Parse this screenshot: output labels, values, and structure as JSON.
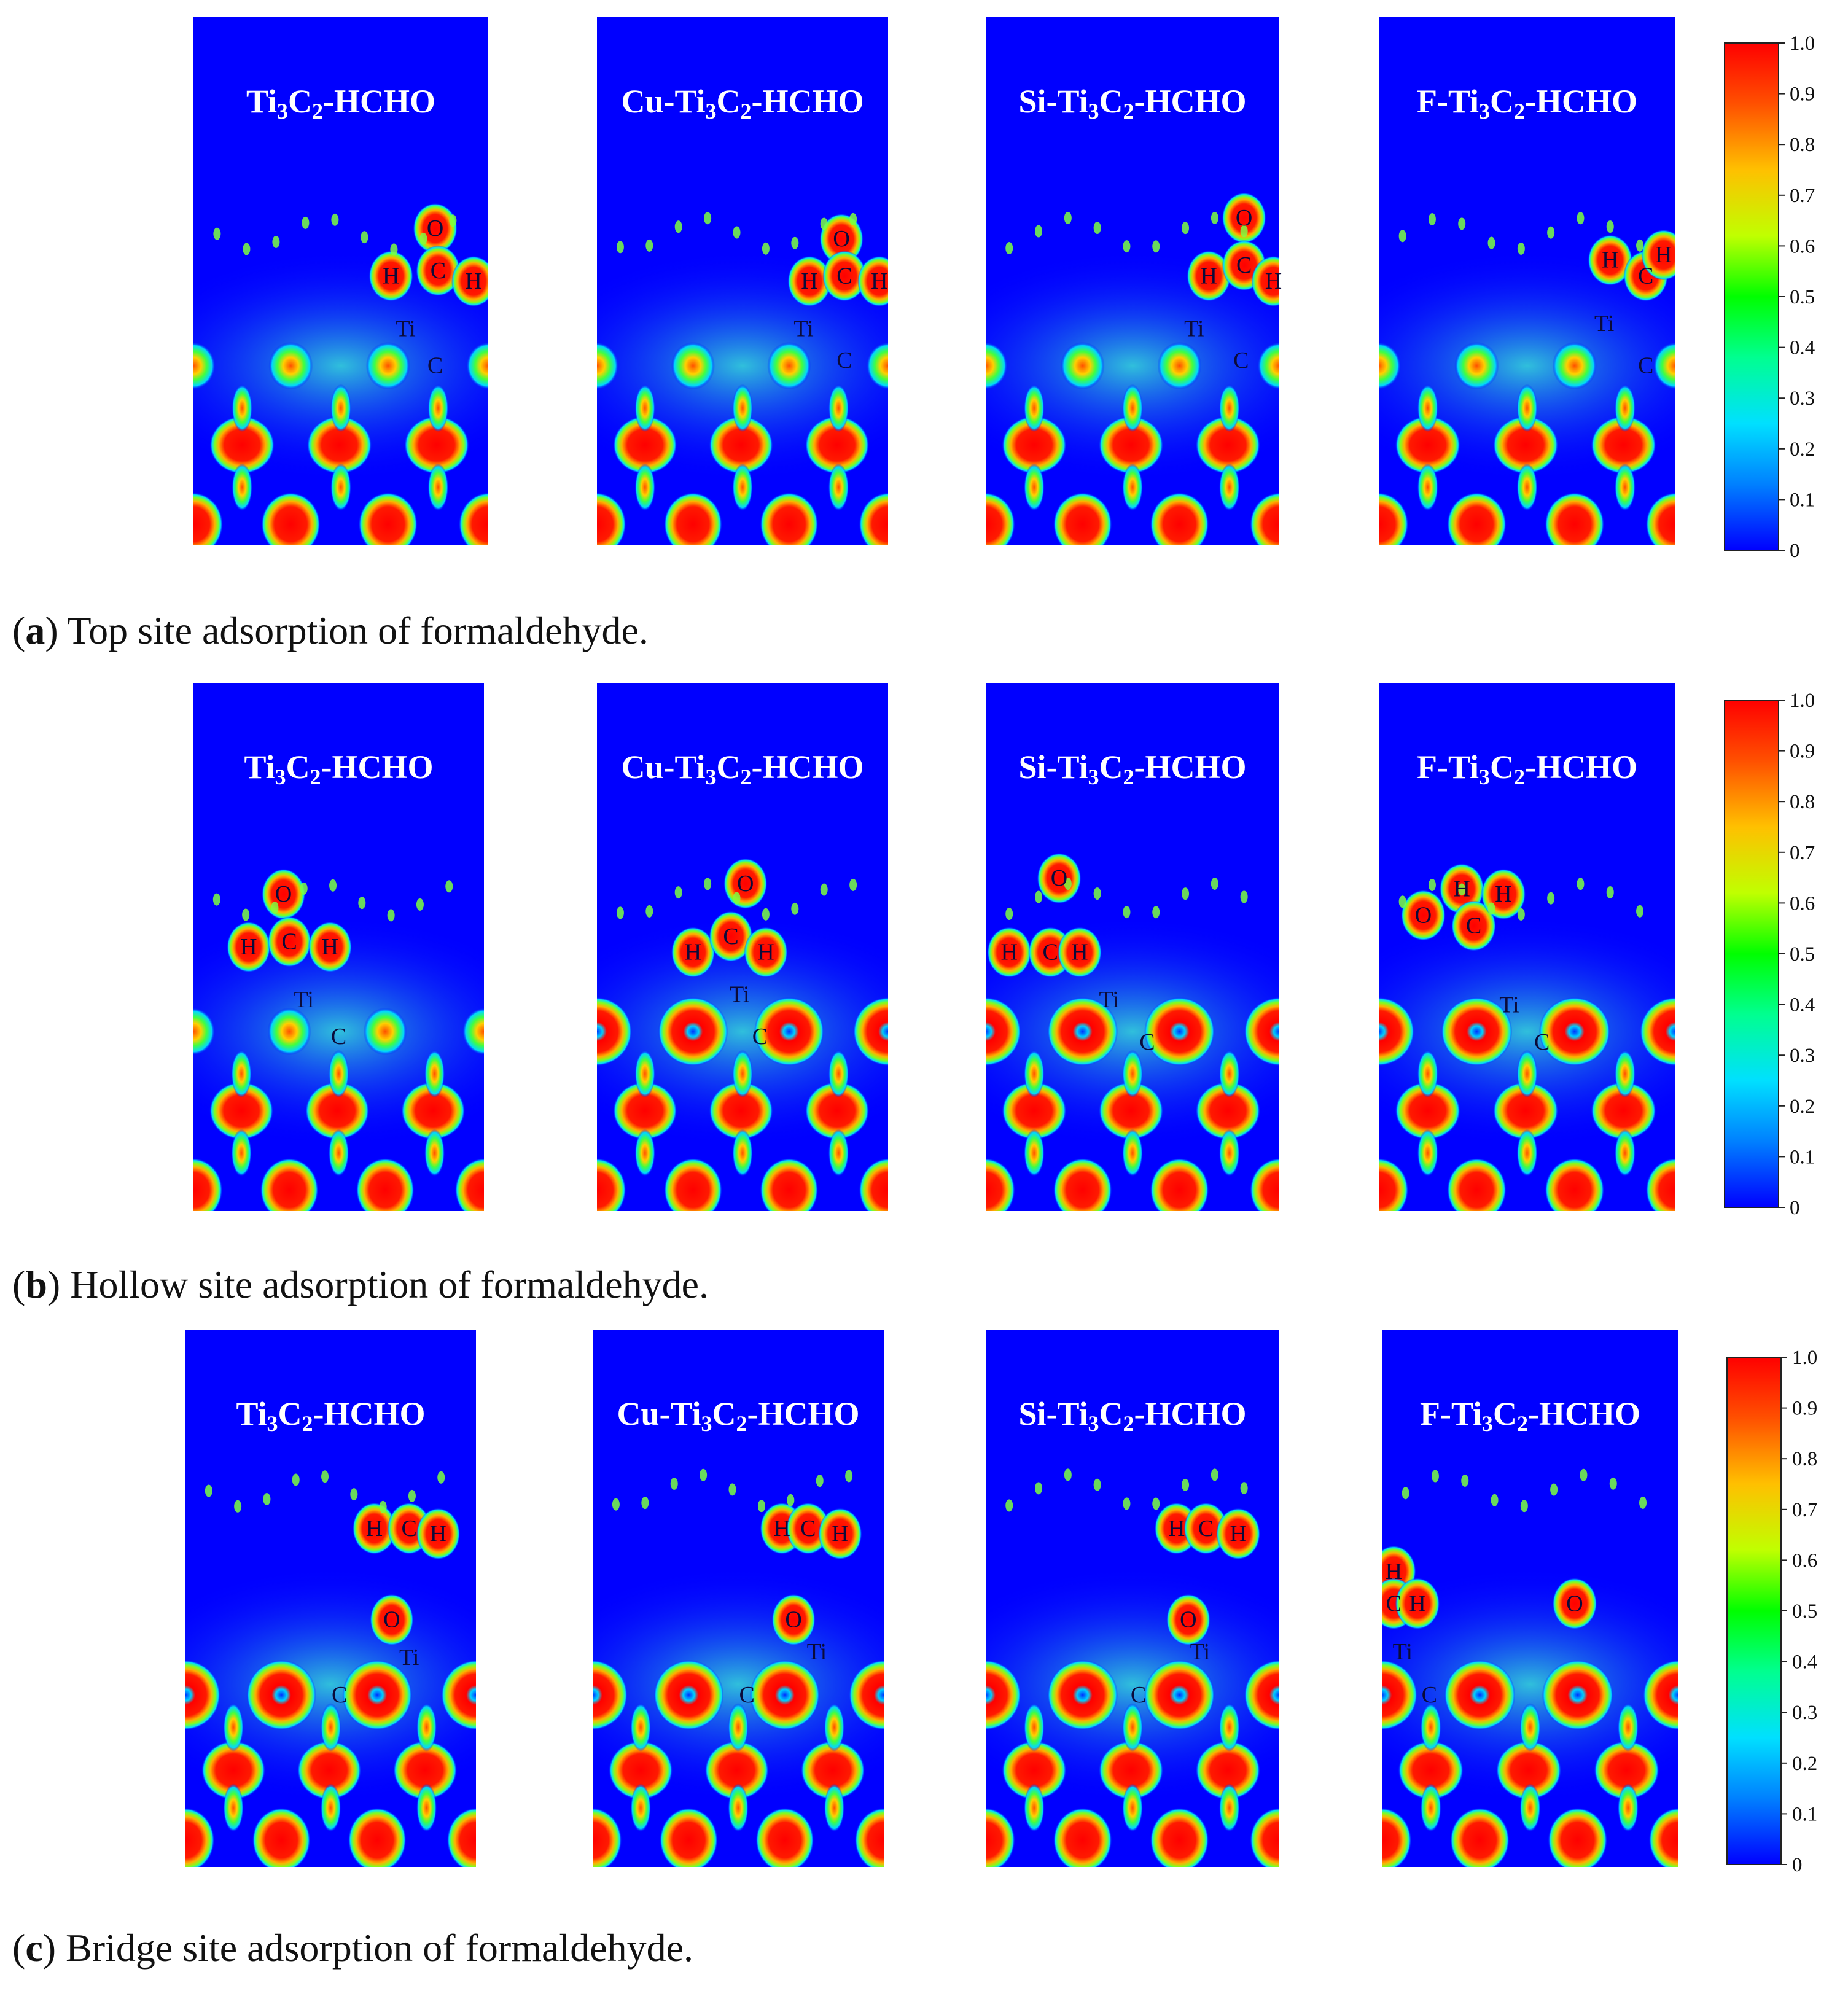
{
  "figure": {
    "panels": [
      {
        "caption_letter": "a",
        "caption_text": "Top site adsorption of formaldehyde.",
        "maps": [
          {
            "title": "Ti3C2-HCHO",
            "labels": [
              {
                "t": "O"
              },
              {
                "t": "H"
              },
              {
                "t": "C"
              },
              {
                "t": "H"
              },
              {
                "t": "Ti"
              },
              {
                "t": "C"
              }
            ]
          },
          {
            "title": "Cu-Ti3C2-HCHO",
            "labels": [
              {
                "t": "O"
              },
              {
                "t": "H"
              },
              {
                "t": "C"
              },
              {
                "t": "H"
              },
              {
                "t": "Ti"
              },
              {
                "t": "C"
              }
            ]
          },
          {
            "title": "Si-Ti3C2-HCHO",
            "labels": [
              {
                "t": "O"
              },
              {
                "t": "H"
              },
              {
                "t": "C"
              },
              {
                "t": "H"
              },
              {
                "t": "Ti"
              },
              {
                "t": "C"
              }
            ]
          },
          {
            "title": "F-Ti3C2-HCHO",
            "labels": [
              {
                "t": "H"
              },
              {
                "t": "C"
              },
              {
                "t": "H"
              },
              {
                "t": "Ti"
              },
              {
                "t": "C"
              }
            ]
          }
        ]
      },
      {
        "caption_letter": "b",
        "caption_text": "Hollow site adsorption of formaldehyde.",
        "maps": [
          {
            "title": "Ti3C2-HCHO",
            "labels": [
              {
                "t": "O"
              },
              {
                "t": "H"
              },
              {
                "t": "C"
              },
              {
                "t": "H"
              },
              {
                "t": "Ti"
              },
              {
                "t": "C"
              }
            ]
          },
          {
            "title": "Cu-Ti3C2-HCHO",
            "labels": [
              {
                "t": "O"
              },
              {
                "t": "H"
              },
              {
                "t": "C"
              },
              {
                "t": "H"
              },
              {
                "t": "Ti"
              },
              {
                "t": "C"
              }
            ]
          },
          {
            "title": "Si-Ti3C2-HCHO",
            "labels": [
              {
                "t": "O"
              },
              {
                "t": "H"
              },
              {
                "t": "C"
              },
              {
                "t": "H"
              },
              {
                "t": "Ti"
              },
              {
                "t": "C"
              }
            ]
          },
          {
            "title": "F-Ti3C2-HCHO",
            "labels": [
              {
                "t": "O"
              },
              {
                "t": "H"
              },
              {
                "t": "C"
              },
              {
                "t": "H"
              },
              {
                "t": "Ti"
              },
              {
                "t": "C"
              }
            ]
          }
        ]
      },
      {
        "caption_letter": "c",
        "caption_text": "Bridge site adsorption of formaldehyde.",
        "maps": [
          {
            "title": "Ti3C2-HCHO",
            "labels": [
              {
                "t": "H"
              },
              {
                "t": "C"
              },
              {
                "t": "H"
              },
              {
                "t": "O"
              },
              {
                "t": "Ti"
              },
              {
                "t": "C"
              }
            ]
          },
          {
            "title": "Cu-Ti3C2-HCHO",
            "labels": [
              {
                "t": "H"
              },
              {
                "t": "C"
              },
              {
                "t": "H"
              },
              {
                "t": "O"
              },
              {
                "t": "Ti"
              },
              {
                "t": "C"
              }
            ]
          },
          {
            "title": "Si-Ti3C2-HCHO",
            "labels": [
              {
                "t": "H"
              },
              {
                "t": "C"
              },
              {
                "t": "H"
              },
              {
                "t": "O"
              },
              {
                "t": "Ti"
              },
              {
                "t": "C"
              }
            ]
          },
          {
            "title": "F-Ti3C2-HCHO",
            "labels": [
              {
                "t": "H"
              },
              {
                "t": "C"
              },
              {
                "t": "H"
              },
              {
                "t": "O"
              },
              {
                "t": "Ti"
              },
              {
                "t": "C"
              }
            ]
          }
        ]
      }
    ],
    "colorbar": {
      "ticks": [
        "1.0",
        "0.9",
        "0.8",
        "0.7",
        "0.6",
        "0.5",
        "0.4",
        "0.3",
        "0.2",
        "0.1",
        "0"
      ]
    },
    "colors": {
      "background": "#0000ff",
      "low": "#0000ff",
      "mid": "#00ff00",
      "high": "#ff0000"
    }
  }
}
